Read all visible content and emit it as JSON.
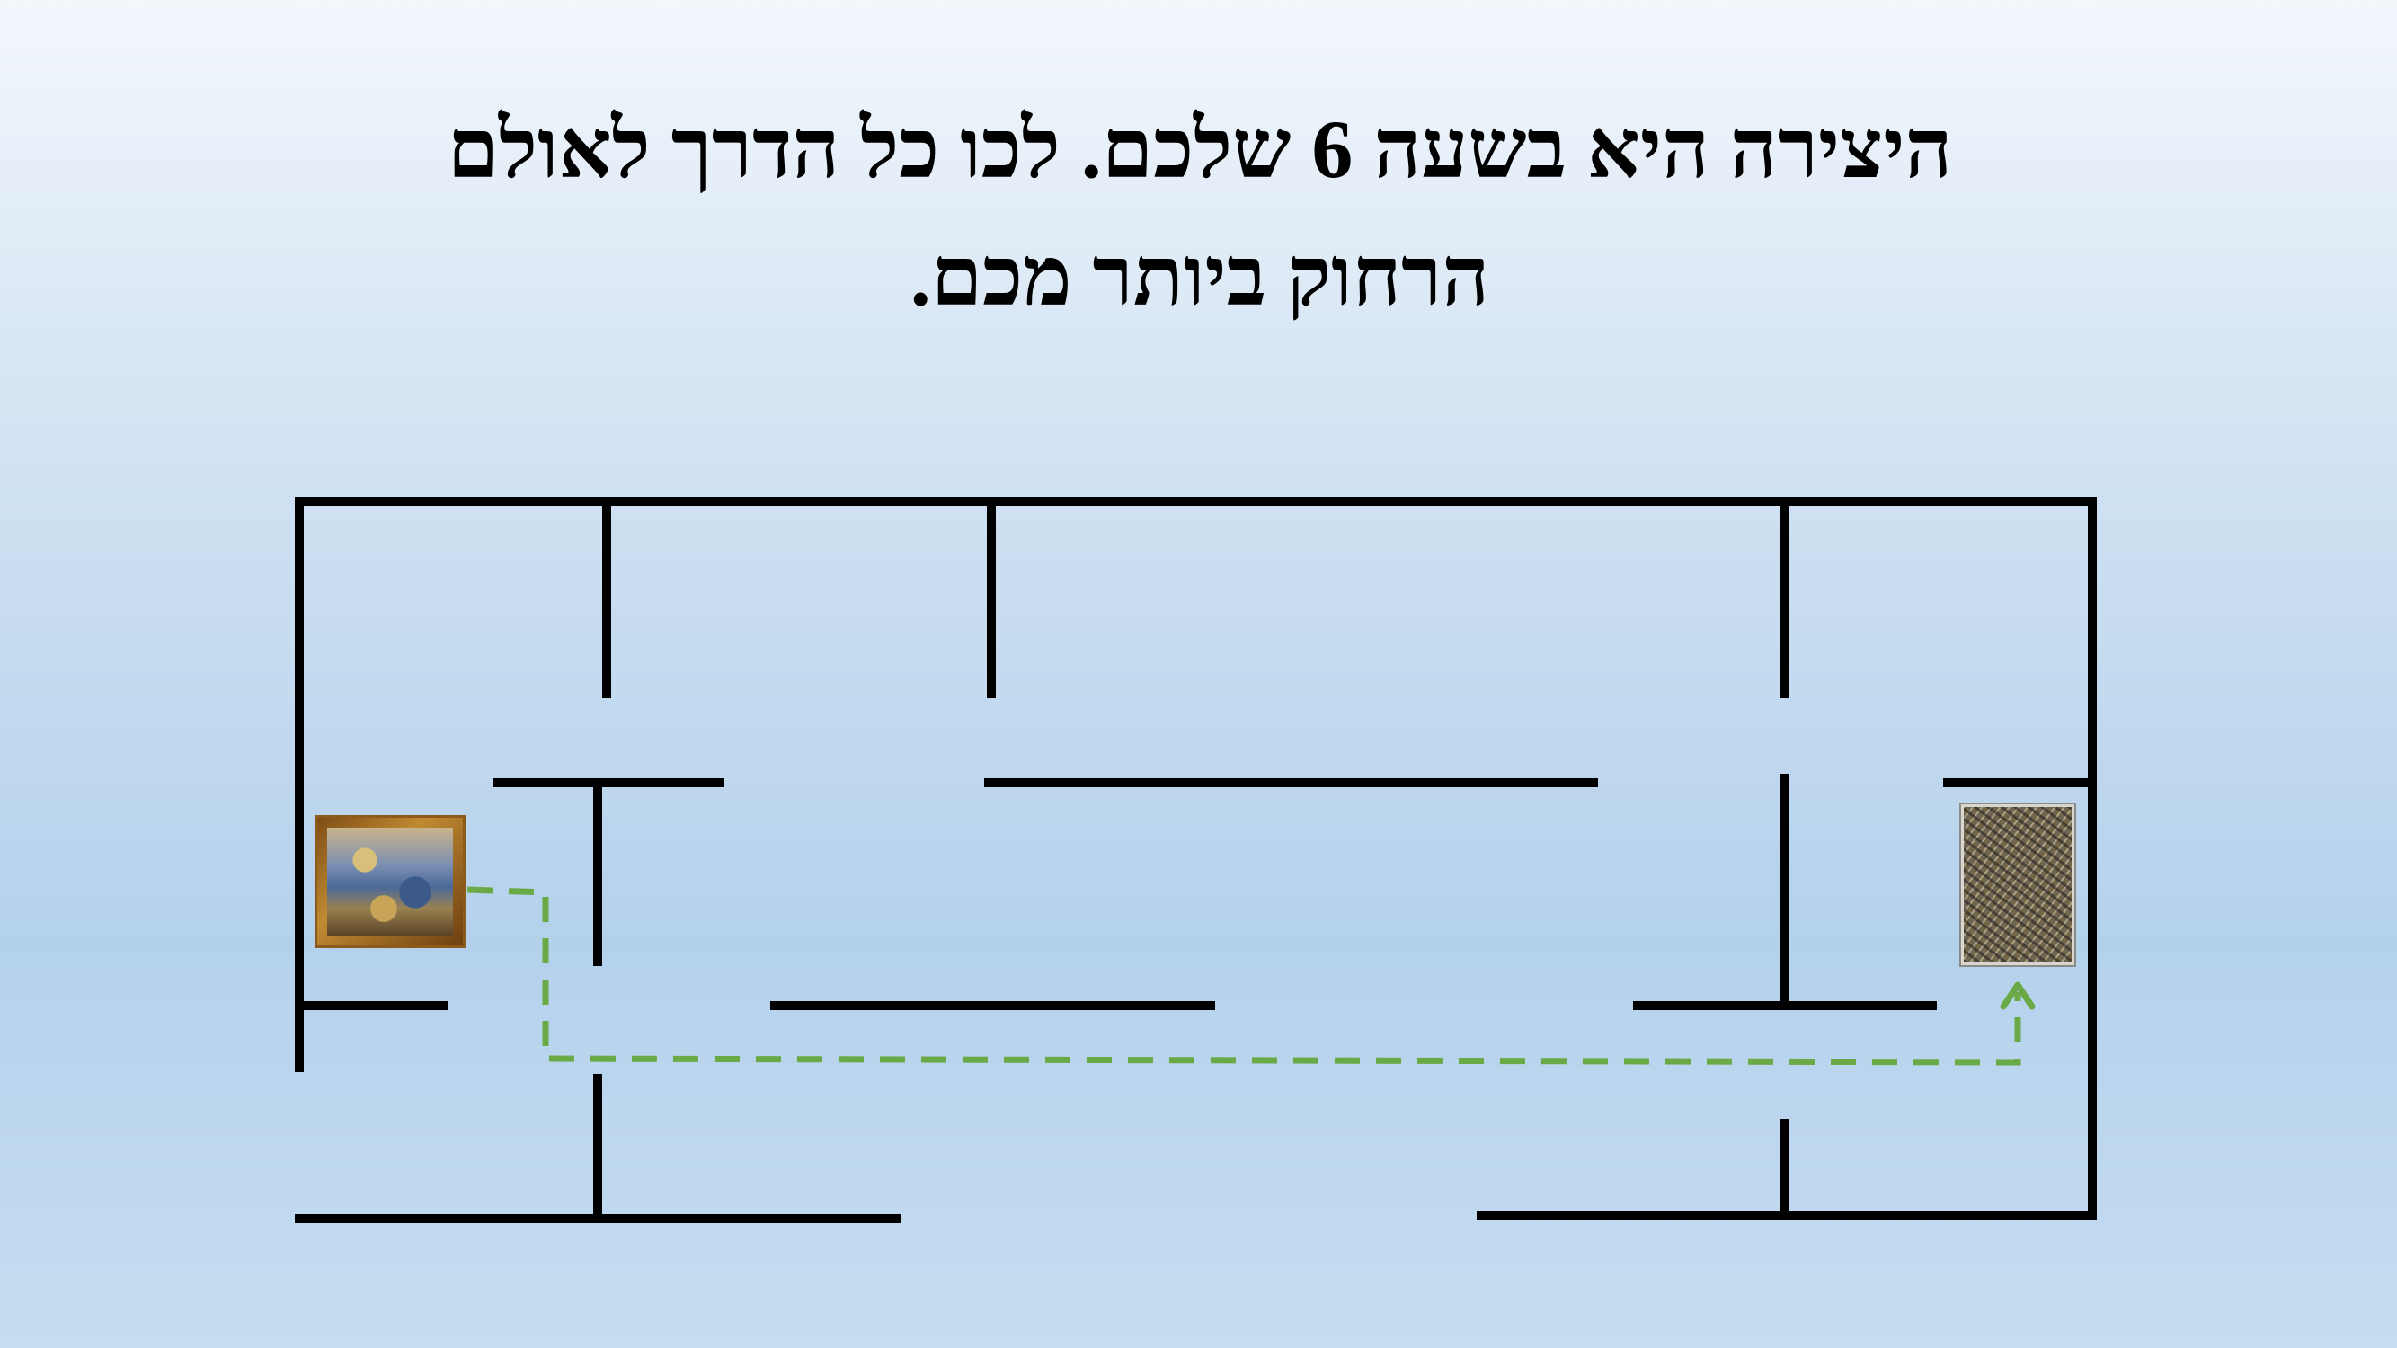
{
  "slide": {
    "title_line1": "היצירה היא בשעה 6 שלכם. לכו כל הדרך לאולם",
    "title_line2": "הרחוק ביותר מכם."
  },
  "floor_plan": {
    "wall_color": "#000000",
    "path_color": "#6aaa46",
    "start": {
      "icon": "framed-painting-icon"
    },
    "destination": {
      "icon": "abstract-painting-icon"
    }
  }
}
